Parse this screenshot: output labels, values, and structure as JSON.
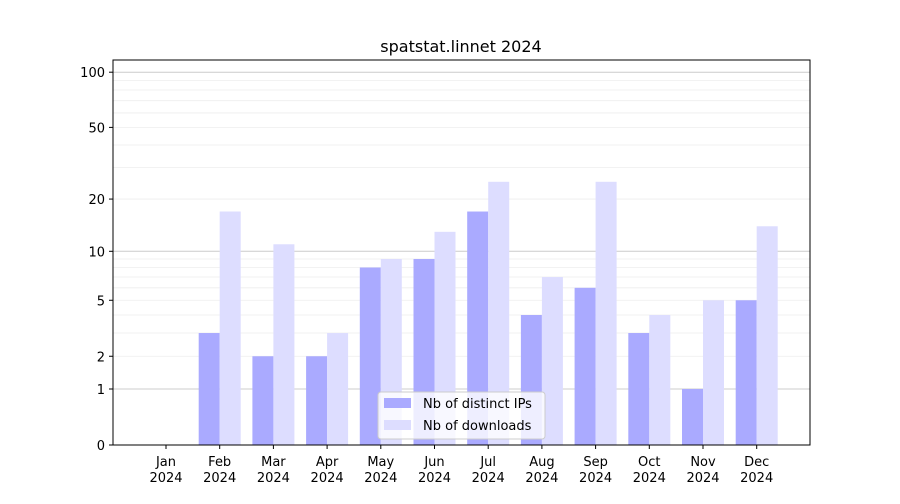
{
  "chart_data": {
    "type": "bar",
    "title": "spatstat.linnet 2024",
    "xlabel": "",
    "ylabel": "",
    "yscale": "log10(1+y)",
    "ylim": [
      0,
      116
    ],
    "yticks": [
      0,
      1,
      2,
      5,
      10,
      20,
      50,
      100
    ],
    "categories": [
      "Jan\n2024",
      "Feb\n2024",
      "Mar\n2024",
      "Apr\n2024",
      "May\n2024",
      "Jun\n2024",
      "Jul\n2024",
      "Aug\n2024",
      "Sep\n2024",
      "Oct\n2024",
      "Nov\n2024",
      "Dec\n2024"
    ],
    "series": [
      {
        "name": "Nb of distinct IPs",
        "color": "#aaaaff",
        "values": [
          0,
          3,
          2,
          2,
          8,
          9,
          17,
          4,
          6,
          3,
          1,
          5
        ]
      },
      {
        "name": "Nb of downloads",
        "color": "#ddddff",
        "values": [
          0,
          17,
          11,
          3,
          9,
          13,
          25,
          7,
          25,
          4,
          5,
          14
        ]
      }
    ],
    "legend": "bottom-center",
    "grid": true
  }
}
